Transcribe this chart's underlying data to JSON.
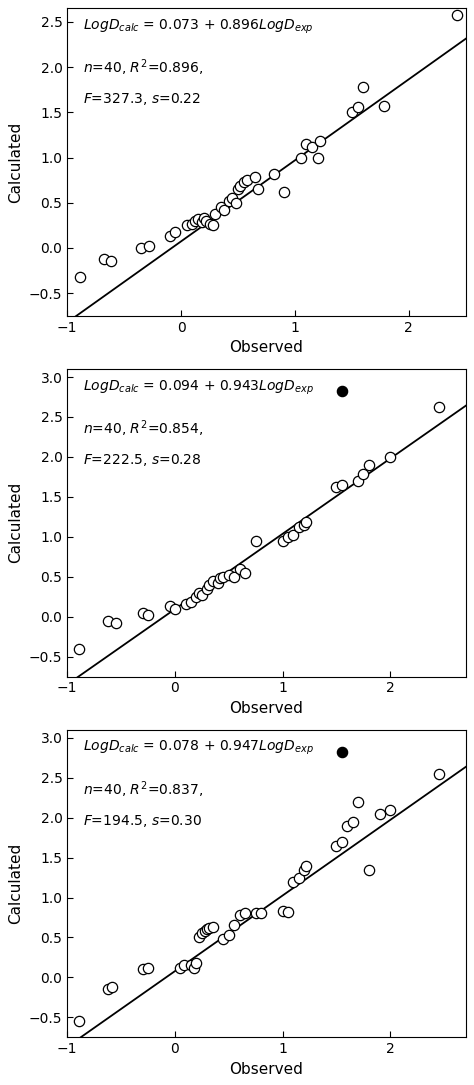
{
  "plots": [
    {
      "intercept": 0.073,
      "slope": 0.896,
      "eq_coeff": "0.073",
      "eq_slope": "0.896",
      "n": "40",
      "R2": "0.896",
      "F": "327.3",
      "s": "0.22",
      "xlim": [
        -1,
        2.5
      ],
      "ylim": [
        -0.75,
        2.65
      ],
      "xticks": [
        -1,
        0,
        1,
        2
      ],
      "yticks": [
        -0.5,
        0.0,
        0.5,
        1.0,
        1.5,
        2.0,
        2.5
      ],
      "open_points": [
        [
          -0.89,
          -0.32
        ],
        [
          -0.68,
          -0.12
        ],
        [
          -0.62,
          -0.14
        ],
        [
          -0.35,
          0.0
        ],
        [
          -0.28,
          0.02
        ],
        [
          -0.1,
          0.13
        ],
        [
          -0.05,
          0.18
        ],
        [
          0.05,
          0.25
        ],
        [
          0.1,
          0.27
        ],
        [
          0.12,
          0.3
        ],
        [
          0.15,
          0.32
        ],
        [
          0.18,
          0.29
        ],
        [
          0.2,
          0.33
        ],
        [
          0.22,
          0.3
        ],
        [
          0.25,
          0.26
        ],
        [
          0.28,
          0.25
        ],
        [
          0.3,
          0.38
        ],
        [
          0.35,
          0.45
        ],
        [
          0.38,
          0.42
        ],
        [
          0.42,
          0.52
        ],
        [
          0.45,
          0.55
        ],
        [
          0.48,
          0.5
        ],
        [
          0.5,
          0.65
        ],
        [
          0.52,
          0.68
        ],
        [
          0.55,
          0.73
        ],
        [
          0.58,
          0.75
        ],
        [
          0.65,
          0.78
        ],
        [
          0.68,
          0.65
        ],
        [
          0.82,
          0.82
        ],
        [
          0.9,
          0.62
        ],
        [
          1.05,
          1.0
        ],
        [
          1.1,
          1.15
        ],
        [
          1.15,
          1.12
        ],
        [
          1.2,
          1.0
        ],
        [
          1.22,
          1.18
        ],
        [
          1.5,
          1.5
        ],
        [
          1.55,
          1.56
        ],
        [
          1.6,
          1.78
        ],
        [
          1.78,
          1.57
        ],
        [
          2.42,
          2.58
        ]
      ],
      "filled_points": [],
      "has_filled": false
    },
    {
      "intercept": 0.094,
      "slope": 0.943,
      "eq_coeff": "0.094",
      "eq_slope": "0.943",
      "n": "40",
      "R2": "0.854",
      "F": "222.5",
      "s": "0.28",
      "xlim": [
        -1,
        2.7
      ],
      "ylim": [
        -0.75,
        3.1
      ],
      "xticks": [
        -1,
        0,
        1,
        2
      ],
      "yticks": [
        -0.5,
        0.0,
        0.5,
        1.0,
        1.5,
        2.0,
        2.5,
        3.0
      ],
      "open_points": [
        [
          -0.89,
          -0.4
        ],
        [
          -0.62,
          -0.05
        ],
        [
          -0.55,
          -0.08
        ],
        [
          -0.3,
          0.05
        ],
        [
          -0.25,
          0.02
        ],
        [
          -0.05,
          0.13
        ],
        [
          0.0,
          0.1
        ],
        [
          0.1,
          0.16
        ],
        [
          0.15,
          0.18
        ],
        [
          0.2,
          0.25
        ],
        [
          0.22,
          0.3
        ],
        [
          0.25,
          0.27
        ],
        [
          0.3,
          0.35
        ],
        [
          0.32,
          0.4
        ],
        [
          0.35,
          0.45
        ],
        [
          0.4,
          0.42
        ],
        [
          0.42,
          0.48
        ],
        [
          0.45,
          0.5
        ],
        [
          0.5,
          0.52
        ],
        [
          0.55,
          0.5
        ],
        [
          0.6,
          0.6
        ],
        [
          0.65,
          0.55
        ],
        [
          0.75,
          0.95
        ],
        [
          1.0,
          0.95
        ],
        [
          1.05,
          1.0
        ],
        [
          1.1,
          1.02
        ],
        [
          1.15,
          1.12
        ],
        [
          1.2,
          1.15
        ],
        [
          1.22,
          1.18
        ],
        [
          1.5,
          1.62
        ],
        [
          1.55,
          1.65
        ],
        [
          1.7,
          1.7
        ],
        [
          1.75,
          1.78
        ],
        [
          1.8,
          1.9
        ],
        [
          2.0,
          2.0
        ],
        [
          2.45,
          2.62
        ]
      ],
      "filled_points": [
        [
          1.55,
          2.82
        ]
      ],
      "has_filled": true
    },
    {
      "intercept": 0.078,
      "slope": 0.947,
      "eq_coeff": "0.078",
      "eq_slope": "0.947",
      "n": "40",
      "R2": "0.837",
      "F": "194.5",
      "s": "0.30",
      "xlim": [
        -1,
        2.7
      ],
      "ylim": [
        -0.75,
        3.1
      ],
      "xticks": [
        -1,
        0,
        1,
        2
      ],
      "yticks": [
        -0.5,
        0.0,
        0.5,
        1.0,
        1.5,
        2.0,
        2.5,
        3.0
      ],
      "open_points": [
        [
          -0.89,
          -0.55
        ],
        [
          -0.62,
          -0.15
        ],
        [
          -0.58,
          -0.12
        ],
        [
          -0.3,
          0.1
        ],
        [
          -0.25,
          0.12
        ],
        [
          0.05,
          0.12
        ],
        [
          0.08,
          0.15
        ],
        [
          0.15,
          0.15
        ],
        [
          0.18,
          0.12
        ],
        [
          0.2,
          0.18
        ],
        [
          0.22,
          0.5
        ],
        [
          0.25,
          0.55
        ],
        [
          0.28,
          0.58
        ],
        [
          0.3,
          0.6
        ],
        [
          0.32,
          0.62
        ],
        [
          0.35,
          0.63
        ],
        [
          0.45,
          0.48
        ],
        [
          0.5,
          0.53
        ],
        [
          0.55,
          0.65
        ],
        [
          0.6,
          0.78
        ],
        [
          0.65,
          0.8
        ],
        [
          0.75,
          0.8
        ],
        [
          0.8,
          0.8
        ],
        [
          1.0,
          0.83
        ],
        [
          1.05,
          0.82
        ],
        [
          1.1,
          1.2
        ],
        [
          1.15,
          1.25
        ],
        [
          1.2,
          1.35
        ],
        [
          1.22,
          1.4
        ],
        [
          1.5,
          1.65
        ],
        [
          1.55,
          1.7
        ],
        [
          1.6,
          1.9
        ],
        [
          1.65,
          1.95
        ],
        [
          1.7,
          2.2
        ],
        [
          1.8,
          1.35
        ],
        [
          1.9,
          2.05
        ],
        [
          2.0,
          2.1
        ],
        [
          2.45,
          2.55
        ]
      ],
      "filled_points": [
        [
          1.55,
          2.82
        ]
      ],
      "has_filled": true
    }
  ],
  "xlabel": "Observed",
  "ylabel": "Calculated",
  "marker_size": 55,
  "marker_linewidth": 0.9,
  "line_color": "black",
  "line_width": 1.3,
  "open_marker_color": "white",
  "open_marker_edge_color": "black",
  "filled_marker_color": "black",
  "fontsize_label": 11,
  "fontsize_tick": 10,
  "fontsize_annot": 10
}
